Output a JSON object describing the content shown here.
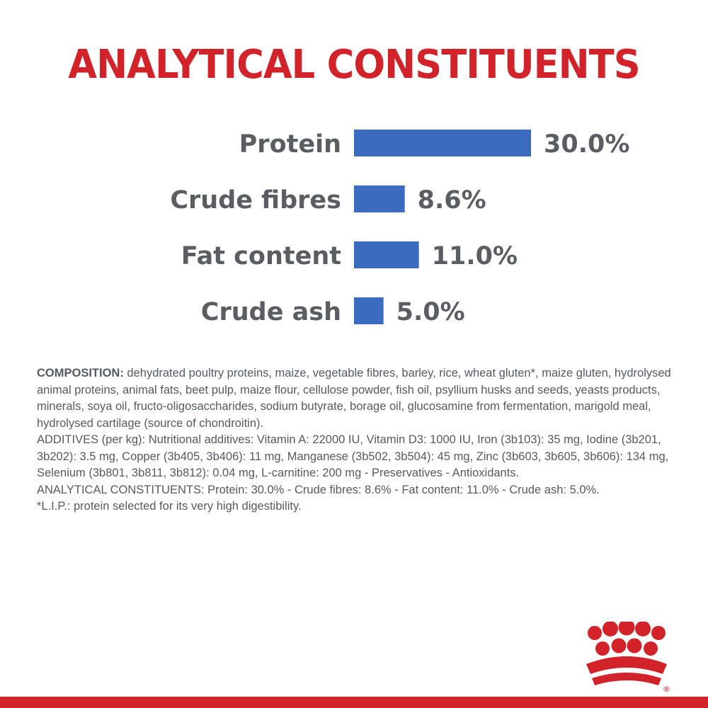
{
  "colors": {
    "title": "#d2232a",
    "bar": "#3a6bbf",
    "label": "#5a5e63",
    "value": "#5a5e63",
    "text": "#555a5f",
    "logo": "#d2232a",
    "footer": "#d2232a"
  },
  "header": {
    "title": "ANALYTICAL CONSTITUENTS"
  },
  "chart_data": {
    "type": "bar",
    "orientation": "horizontal",
    "title": "ANALYTICAL CONSTITUENTS",
    "categories": [
      "Protein",
      "Crude fibres",
      "Fat content",
      "Crude ash"
    ],
    "values": [
      30.0,
      8.6,
      11.0,
      5.0
    ],
    "value_labels": [
      "30.0%",
      "8.6%",
      "11.0%",
      "5.0%"
    ],
    "unit": "%",
    "xlim": [
      0,
      30
    ],
    "grid": false,
    "legend": "none"
  },
  "composition": {
    "lead": "COMPOSITION:",
    "paragraphs": [
      " dehydrated poultry proteins, maize, vegetable fibres, barley, rice, wheat gluten*, maize gluten, hydrolysed animal proteins, animal fats, beet pulp, maize flour, cellulose powder, fish oil, psyllium husks and seeds, yeasts products, minerals, soya oil, fructo-oligosaccharides, sodium butyrate, borage oil, glucosamine from fermentation, marigold meal, hydrolysed cartilage (source of chondroitin).",
      "ADDITIVES (per kg): Nutritional additives: Vitamin A: 22000 IU, Vitamin D3: 1000 IU, Iron (3b103): 35 mg, Iodine (3b201, 3b202): 3.5 mg, Copper (3b405, 3b406): 11 mg, Manganese (3b502, 3b504): 45 mg, Zinc (3b603, 3b605, 3b606): 134 mg, Selenium (3b801, 3b811, 3b812): 0.04 mg, L-carnitine: 200 mg - Preservatives - Antioxidants.",
      "ANALYTICAL CONSTITUENTS: Protein: 30.0% - Crude fibres: 8.6% - Fat content: 11.0% - Crude ash: 5.0%.",
      "*L.I.P.: protein selected for its very high digestibility."
    ]
  },
  "logo": {
    "icon": "crown-icon",
    "mark": "®"
  }
}
